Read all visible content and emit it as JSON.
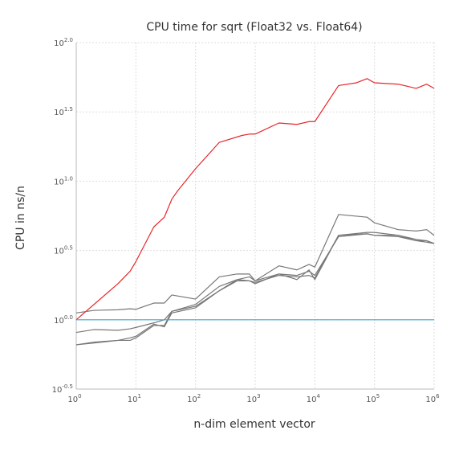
{
  "chart_data": {
    "type": "line",
    "title": "CPU time for sqrt (Float32 vs. Float64)",
    "xlabel": "n-dim element vector",
    "ylabel": "CPU in ns/n",
    "xscale": "log10",
    "yscale": "log10",
    "xlim_exp": [
      0,
      6
    ],
    "ylim_exp": [
      -0.5,
      2.0
    ],
    "x_ticks": [
      {
        "base": "10",
        "exp": "0",
        "value": 1
      },
      {
        "base": "10",
        "exp": "1",
        "value": 10
      },
      {
        "base": "10",
        "exp": "2",
        "value": 100
      },
      {
        "base": "10",
        "exp": "3",
        "value": 1000
      },
      {
        "base": "10",
        "exp": "4",
        "value": 10000
      },
      {
        "base": "10",
        "exp": "5",
        "value": 100000
      },
      {
        "base": "10",
        "exp": "6",
        "value": 1000000
      }
    ],
    "y_ticks": [
      {
        "base": "10",
        "exp": "-0.5",
        "value": 0.316
      },
      {
        "base": "10",
        "exp": "0.0",
        "value": 1.0
      },
      {
        "base": "10",
        "exp": "0.5",
        "value": 3.162
      },
      {
        "base": "10",
        "exp": "1.0",
        "value": 10.0
      },
      {
        "base": "10",
        "exp": "1.5",
        "value": 31.62
      },
      {
        "base": "10",
        "exp": "2.0",
        "value": 100.0
      }
    ],
    "grid": true,
    "legend": "none",
    "series": [
      {
        "color": "#e8262a",
        "x": [
          1,
          5,
          8,
          10,
          20,
          30,
          40,
          50,
          100,
          250,
          600,
          800,
          1000,
          2500,
          5000,
          8000,
          10000,
          25000,
          50000,
          75000,
          100000,
          250000,
          500000,
          750000,
          1000000
        ],
        "y": [
          1.0,
          1.82,
          2.24,
          2.63,
          4.68,
          5.5,
          7.41,
          8.51,
          12.3,
          19.05,
          21.38,
          21.88,
          21.88,
          26.3,
          25.7,
          26.92,
          26.92,
          48.98,
          51.29,
          54.95,
          51.29,
          50.12,
          46.77,
          50.12,
          46.77
        ]
      },
      {
        "color": "#777777",
        "x": [
          1,
          2,
          5,
          8,
          10,
          20,
          30,
          40,
          100,
          250,
          500,
          800,
          1000,
          2500,
          5000,
          8000,
          10000,
          25000,
          75000,
          100000,
          250000,
          500000,
          750000,
          1000000
        ],
        "y": [
          1.12,
          1.17,
          1.18,
          1.2,
          1.19,
          1.32,
          1.32,
          1.51,
          1.41,
          2.04,
          2.14,
          2.14,
          1.91,
          2.45,
          2.29,
          2.51,
          2.4,
          5.75,
          5.5,
          5.01,
          4.47,
          4.37,
          4.47,
          4.07
        ]
      },
      {
        "color": "#777777",
        "x": [
          1,
          2,
          5,
          8,
          10,
          20,
          30,
          40,
          100,
          250,
          500,
          800,
          1000,
          2500,
          5000,
          8000,
          10000,
          25000,
          75000,
          100000,
          250000,
          500000,
          750000,
          1000000
        ],
        "y": [
          0.81,
          0.85,
          0.84,
          0.86,
          0.88,
          0.95,
          1.0,
          1.15,
          1.29,
          1.74,
          1.95,
          2.04,
          1.91,
          2.14,
          2.09,
          2.24,
          2.09,
          3.98,
          4.17,
          4.07,
          4.07,
          3.72,
          3.72,
          3.55
        ]
      },
      {
        "color": "#777777",
        "x": [
          1,
          2,
          5,
          8,
          10,
          20,
          30,
          40,
          100,
          250,
          500,
          800,
          1000,
          2500,
          5000,
          8000,
          10000,
          25000,
          75000,
          100000,
          250000,
          500000,
          750000,
          1000000
        ],
        "y": [
          0.66,
          0.69,
          0.71,
          0.71,
          0.74,
          0.91,
          0.91,
          1.15,
          1.25,
          1.62,
          1.95,
          1.91,
          1.86,
          2.09,
          2.04,
          2.09,
          2.0,
          4.07,
          4.17,
          4.07,
          3.98,
          3.72,
          3.63,
          3.55
        ]
      },
      {
        "color": "#777777",
        "x": [
          1,
          2,
          5,
          8,
          10,
          20,
          30,
          40,
          100,
          250,
          500,
          800,
          1000,
          2500,
          5000,
          8000,
          10000,
          25000,
          75000,
          100000,
          250000,
          500000,
          750000,
          1000000
        ],
        "y": [
          0.66,
          0.68,
          0.71,
          0.74,
          0.76,
          0.93,
          0.89,
          1.12,
          1.22,
          1.62,
          1.91,
          1.91,
          1.82,
          2.14,
          1.95,
          2.29,
          1.95,
          4.07,
          4.27,
          4.27,
          4.07,
          3.8,
          3.72,
          3.55
        ]
      },
      {
        "color": "#3aa8d8",
        "x": [
          1,
          1000000
        ],
        "y": [
          1.0,
          1.0
        ]
      }
    ]
  }
}
